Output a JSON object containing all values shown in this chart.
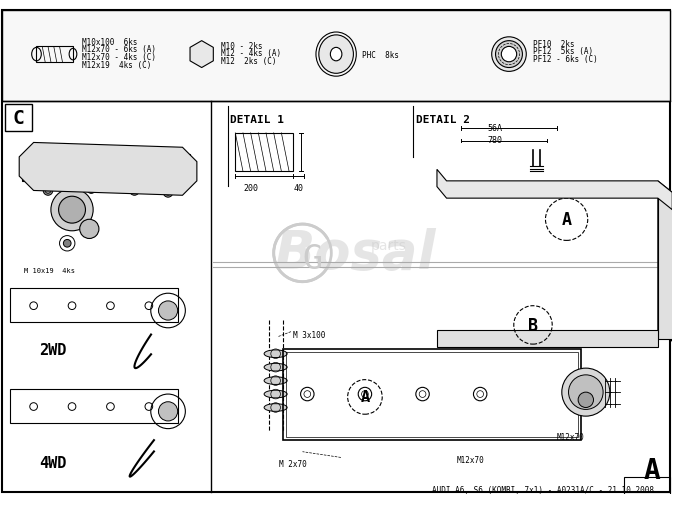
{
  "title": "AUDI A6, S6 (KOMBI, 7x1) - A0231A/C - 21.10.2008",
  "background_color": "#ffffff",
  "border_color": "#000000",
  "line_color": "#000000",
  "light_gray": "#cccccc",
  "medium_gray": "#888888",
  "label_A_bottom_right": "A",
  "label_A_circle": "A",
  "label_B_circle": "B",
  "label_C_box": "C",
  "detail1_text": "DETAIL 1",
  "detail2_text": "DETAIL 2",
  "label_2wd": "2WD",
  "label_4wd": "4WD",
  "dim_200": "200",
  "dim_40": "40",
  "dim_56A": "56A",
  "dim_780": "780",
  "bolt_labels": [
    "M10x100  6ks",
    "M12x70 - 6ks (A)",
    "M12x70 - 4ks (C)",
    "M12x19  4ks (C)"
  ],
  "nut_labels": [
    "M10 - 2ks",
    "M12 - 4ks (A)",
    "M12  2ks (C)"
  ],
  "washer_label": "PHC  8ks",
  "spring_washer_labels": [
    "PF10  2ks",
    "PF12  5ks (A)",
    "PF12 - 6ks (C)"
  ],
  "m12x70_label": "M12x70",
  "m12x19_label": "M 10x19  4ks",
  "m3x100_label": "M 3x100",
  "m2x70_label_1": "M 2x70",
  "m2x70_label_2": "M 2x70",
  "logo_text": "Bosal",
  "logo_subtext": "parts",
  "watermark_opacity": 0.15
}
